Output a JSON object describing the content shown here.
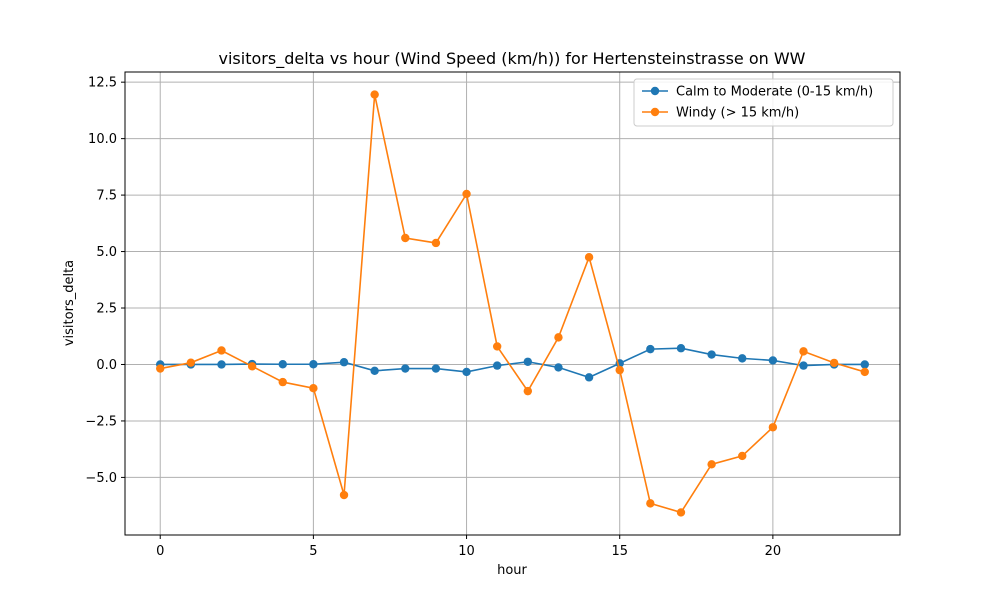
{
  "chart_data": {
    "type": "line",
    "title": "visitors_delta vs hour (Wind Speed (km/h)) for Hertensteinstrasse on WW",
    "xlabel": "hour",
    "ylabel": "visitors_delta",
    "xlim": [
      -1.15,
      24.15
    ],
    "ylim": [
      -7.55,
      12.95
    ],
    "xticks": [
      0,
      5,
      10,
      15,
      20
    ],
    "yticks": [
      -5.0,
      -2.5,
      0.0,
      2.5,
      5.0,
      7.5,
      10.0,
      12.5
    ],
    "grid": true,
    "legend_position": "upper right",
    "x": [
      0,
      1,
      2,
      3,
      4,
      5,
      6,
      7,
      8,
      9,
      10,
      11,
      12,
      13,
      14,
      15,
      16,
      17,
      18,
      19,
      20,
      21,
      22,
      23
    ],
    "series": [
      {
        "name": "Calm to Moderate (0-15 km/h)",
        "color": "#1f77b4",
        "values": [
          0.0,
          0.0,
          0.0,
          0.02,
          0.01,
          0.01,
          0.1,
          -0.28,
          -0.18,
          -0.18,
          -0.33,
          -0.05,
          0.12,
          -0.13,
          -0.57,
          0.05,
          0.68,
          0.72,
          0.44,
          0.27,
          0.18,
          -0.05,
          0.0,
          0.0
        ]
      },
      {
        "name": "Windy (> 15 km/h)",
        "color": "#ff7f0e",
        "values": [
          -0.18,
          0.08,
          0.62,
          -0.08,
          -0.78,
          -1.05,
          -5.78,
          11.95,
          5.6,
          5.38,
          7.55,
          0.8,
          -1.18,
          1.2,
          4.75,
          -0.25,
          -6.15,
          -6.55,
          -4.42,
          -4.05,
          -2.78,
          0.58,
          0.07,
          -0.33
        ]
      }
    ]
  }
}
